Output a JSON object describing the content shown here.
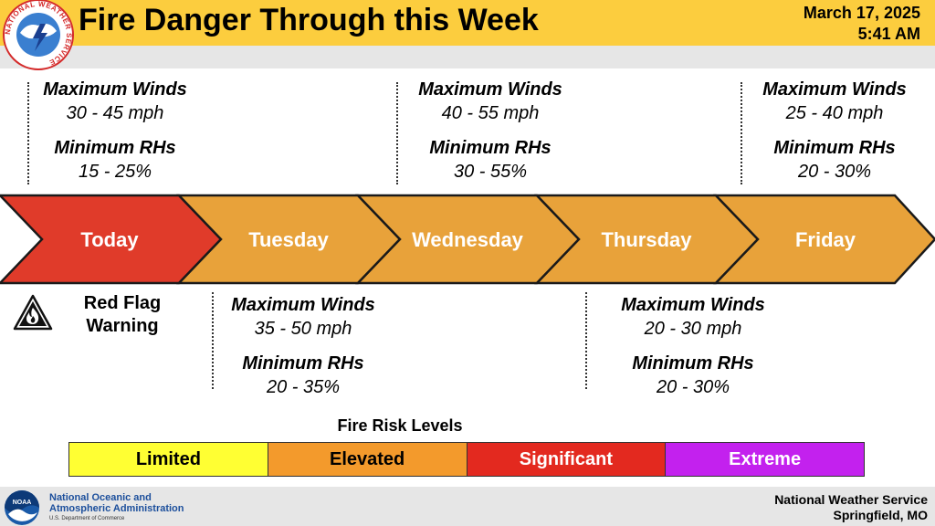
{
  "header": {
    "title": "Fire Danger Through this Week",
    "date": "March 17, 2025",
    "time": "5:41 AM",
    "logo_text": "NATIONAL WEATHER SERVICE"
  },
  "days": [
    {
      "name": "Today",
      "color": "#e03b2a"
    },
    {
      "name": "Tuesday",
      "color": "#e8a23a"
    },
    {
      "name": "Wednesday",
      "color": "#e8a23a"
    },
    {
      "name": "Thursday",
      "color": "#e8a23a"
    },
    {
      "name": "Friday",
      "color": "#e8a23a"
    }
  ],
  "forecasts": {
    "today": {
      "winds_label": "Maximum Winds",
      "winds": "30 - 45 mph",
      "rh_label": "Minimum RHs",
      "rh": "15 - 25%"
    },
    "tuesday": {
      "winds_label": "Maximum Winds",
      "winds": "35 - 50 mph",
      "rh_label": "Minimum RHs",
      "rh": "20 - 35%"
    },
    "wednesday": {
      "winds_label": "Maximum Winds",
      "winds": "40 - 55 mph",
      "rh_label": "Minimum RHs",
      "rh": "30 - 55%"
    },
    "thursday": {
      "winds_label": "Maximum Winds",
      "winds": "20 - 30 mph",
      "rh_label": "Minimum RHs",
      "rh": "20 - 30%"
    },
    "friday": {
      "winds_label": "Maximum Winds",
      "winds": "25 - 40 mph",
      "rh_label": "Minimum RHs",
      "rh": "20 - 30%"
    }
  },
  "red_flag": {
    "line1": "Red Flag",
    "line2": "Warning",
    "icon": "fire-warning-icon"
  },
  "legend": {
    "title": "Fire Risk Levels",
    "levels": [
      {
        "label": "Limited",
        "color": "#ffff33",
        "text_color": "#000000"
      },
      {
        "label": "Elevated",
        "color": "#f39a2c",
        "text_color": "#000000"
      },
      {
        "label": "Significant",
        "color": "#e3291f",
        "text_color": "#ffffff"
      },
      {
        "label": "Extreme",
        "color": "#c321ee",
        "text_color": "#ffffff"
      }
    ]
  },
  "footer": {
    "noaa_line1": "National Oceanic and",
    "noaa_line2": "Atmospheric Administration",
    "noaa_line3": "U.S. Department of Commerce",
    "noaa_logo_text": "NOAA",
    "office_line1": "National Weather Service",
    "office_line2": "Springfield, MO"
  }
}
